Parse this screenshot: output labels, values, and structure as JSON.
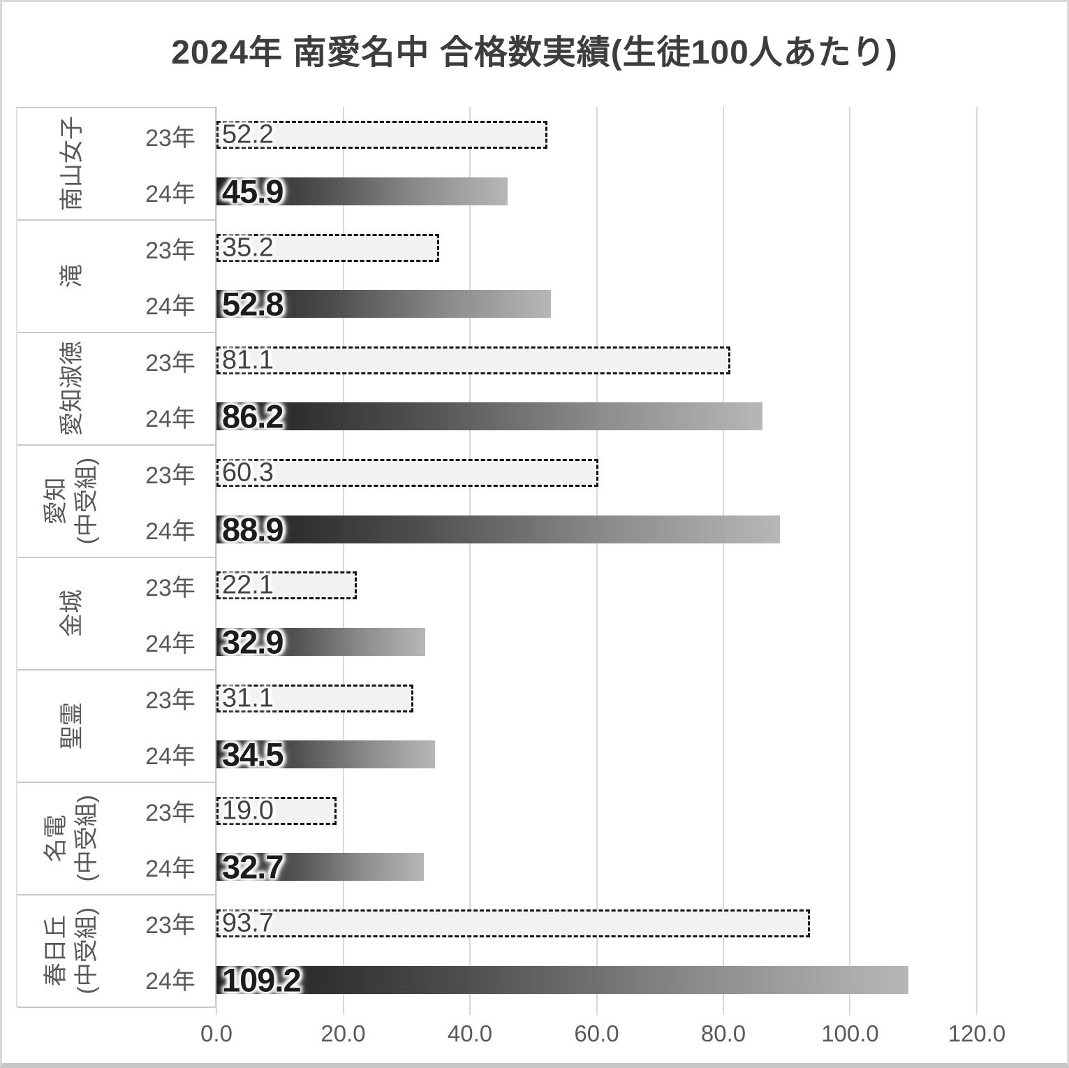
{
  "title": "2024年 南愛名中 合格数実績(生徒100人あたり)",
  "chart_data": {
    "type": "bar",
    "orientation": "horizontal",
    "title": "2024年 南愛名中 合格数実績(生徒100人あたり)",
    "xlabel": "",
    "ylabel": "",
    "xlim": [
      0,
      120
    ],
    "grid": true,
    "legend": "none",
    "x_ticks": [
      "0.0",
      "20.0",
      "40.0",
      "60.0",
      "80.0",
      "100.0",
      "120.0"
    ],
    "series_styles": {
      "year23": {
        "fill": "#f2f2f2",
        "border": "dashed #141414",
        "label_style": "regular"
      },
      "year24": {
        "fill_gradient": [
          "#1a1a1a",
          "#b7b7b7"
        ],
        "label_style": "bold"
      }
    },
    "groups": [
      {
        "school": "南山女子",
        "values": [
          {
            "year": "23年",
            "value": 52.2,
            "label": "52.2"
          },
          {
            "year": "24年",
            "value": 45.9,
            "label": "45.9"
          }
        ]
      },
      {
        "school": "滝",
        "values": [
          {
            "year": "23年",
            "value": 35.2,
            "label": "35.2"
          },
          {
            "year": "24年",
            "value": 52.8,
            "label": "52.8"
          }
        ]
      },
      {
        "school": "愛知淑徳",
        "values": [
          {
            "year": "23年",
            "value": 81.1,
            "label": "81.1"
          },
          {
            "year": "24年",
            "value": 86.2,
            "label": "86.2"
          }
        ]
      },
      {
        "school": "愛知\n(中受組)",
        "values": [
          {
            "year": "23年",
            "value": 60.3,
            "label": "60.3"
          },
          {
            "year": "24年",
            "value": 88.9,
            "label": "88.9"
          }
        ]
      },
      {
        "school": "金城",
        "values": [
          {
            "year": "23年",
            "value": 22.1,
            "label": "22.1"
          },
          {
            "year": "24年",
            "value": 32.9,
            "label": "32.9"
          }
        ]
      },
      {
        "school": "聖霊",
        "values": [
          {
            "year": "23年",
            "value": 31.1,
            "label": "31.1"
          },
          {
            "year": "24年",
            "value": 34.5,
            "label": "34.5"
          }
        ]
      },
      {
        "school": "名電\n(中受組)",
        "values": [
          {
            "year": "23年",
            "value": 19.0,
            "label": "19.0"
          },
          {
            "year": "24年",
            "value": 32.7,
            "label": "32.7"
          }
        ]
      },
      {
        "school": "春日丘\n(中受組)",
        "values": [
          {
            "year": "23年",
            "value": 93.7,
            "label": "93.7"
          },
          {
            "year": "24年",
            "value": 109.2,
            "label": "109.2"
          }
        ]
      }
    ],
    "colors": {
      "gridline": "#d9d9d9",
      "axis_text": "#595959",
      "title_text": "#3d3d3d",
      "bar23_fill": "#f2f2f2",
      "bar23_border": "#141414",
      "bar24_dark": "#1a1a1a",
      "bar24_light": "#b7b7b7"
    }
  }
}
